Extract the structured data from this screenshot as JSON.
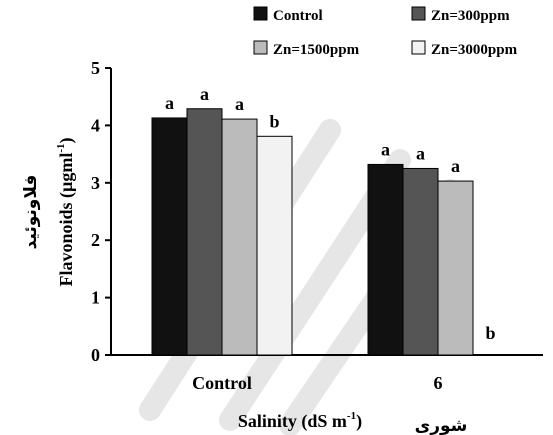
{
  "chart_data": {
    "type": "bar",
    "categories": [
      "Control",
      "6"
    ],
    "series": [
      {
        "name": "Control",
        "color": "#111111",
        "values": [
          4.13,
          3.32
        ],
        "letters": [
          "a",
          "a"
        ]
      },
      {
        "name": "Zn=300ppm",
        "color": "#555555",
        "values": [
          4.29,
          3.25
        ],
        "letters": [
          "a",
          "a"
        ]
      },
      {
        "name": "Zn=1500ppm",
        "color": "#bbbbbb",
        "values": [
          4.11,
          3.03
        ],
        "letters": [
          "a",
          "a"
        ]
      },
      {
        "name": "Zn=3000ppm",
        "color": "#f2f2f2",
        "values": [
          3.81,
          0
        ],
        "letters": [
          "b",
          "b"
        ]
      }
    ],
    "xlabel": "Salinity (dS m",
    "xlabel_sup": "-1",
    "xlabel_close": ")",
    "xlabel_fa": "شوری",
    "ylabel": "Flavonoids (µgml",
    "ylabel_sup": "-1",
    "ylabel_close": ")",
    "ylabel_fa": "فلاونوئید",
    "ylim": [
      0,
      5
    ],
    "yticks": [
      0,
      1,
      2,
      3,
      4,
      5
    ],
    "grid": false,
    "legend_position": "top"
  }
}
